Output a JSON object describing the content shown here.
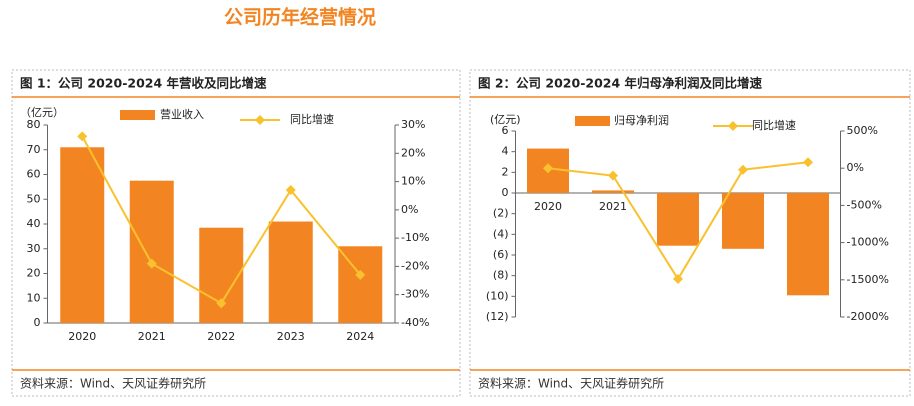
{
  "title": "公司历年经营情况",
  "chart_data": [
    {
      "type": "bar",
      "title": "图 1：公司 2020-2024 年营收及同比增速",
      "ylabel": "（亿元）",
      "source": "资料来源：Wind、天风证券研究所",
      "categories": [
        "2020",
        "2021",
        "2022",
        "2023",
        "2024"
      ],
      "series": [
        {
          "name": "营业收入",
          "type": "bar",
          "color": "#f28522",
          "values": [
            71,
            57.5,
            38.5,
            41,
            31
          ]
        },
        {
          "name": "同比增速",
          "type": "line",
          "axis": "y2",
          "color": "#f9c12e",
          "values": [
            26,
            -19,
            -33,
            7,
            -23
          ]
        }
      ],
      "ylim": [
        0,
        80
      ],
      "yticks": [
        0,
        10,
        20,
        30,
        40,
        50,
        60,
        70,
        80
      ],
      "y2lim": [
        -40,
        30
      ],
      "y2ticks": [
        {
          "value": -40,
          "label": "-40%"
        },
        {
          "value": -30,
          "label": "-30%"
        },
        {
          "value": -20,
          "label": "-20%"
        },
        {
          "value": -10,
          "label": "-10%"
        },
        {
          "value": 0,
          "label": "0%"
        },
        {
          "value": 10,
          "label": "10%"
        },
        {
          "value": 20,
          "label": "20%"
        },
        {
          "value": 30,
          "label": "30%"
        }
      ]
    },
    {
      "type": "bar",
      "title": "图 2：公司 2020-2024 年归母净利润及同比增速",
      "ylabel": "(亿元)",
      "source": "资料来源：Wind、天风证券研究所",
      "categories": [
        "2020",
        "2021",
        "2022",
        "2023",
        "2024"
      ],
      "series": [
        {
          "name": "归母净利润",
          "type": "bar",
          "color": "#f28522",
          "values": [
            4.3,
            0.25,
            -5.1,
            -5.4,
            -9.9
          ]
        },
        {
          "name": "同比增速",
          "type": "line",
          "axis": "y2",
          "color": "#f9c12e",
          "values": [
            0,
            -100,
            -1490,
            -20,
            80
          ]
        }
      ],
      "ylim": [
        -12,
        6
      ],
      "yticks": [
        {
          "value": -12,
          "label": "(12)"
        },
        {
          "value": -10,
          "label": "(10)"
        },
        {
          "value": -8,
          "label": "(8)"
        },
        {
          "value": -6,
          "label": "(6)"
        },
        {
          "value": -4,
          "label": "(4)"
        },
        {
          "value": -2,
          "label": "(2)"
        },
        0,
        2,
        4,
        6
      ],
      "y2lim": [
        -2000,
        500
      ],
      "y2ticks": [
        {
          "value": -2000,
          "label": "-2000%"
        },
        {
          "value": -1500,
          "label": "-1500%"
        },
        {
          "value": -1000,
          "label": "-1000%"
        },
        {
          "value": -500,
          "label": "-500%"
        },
        {
          "value": 0,
          "label": "0%"
        },
        {
          "value": 500,
          "label": "500%"
        }
      ]
    }
  ]
}
